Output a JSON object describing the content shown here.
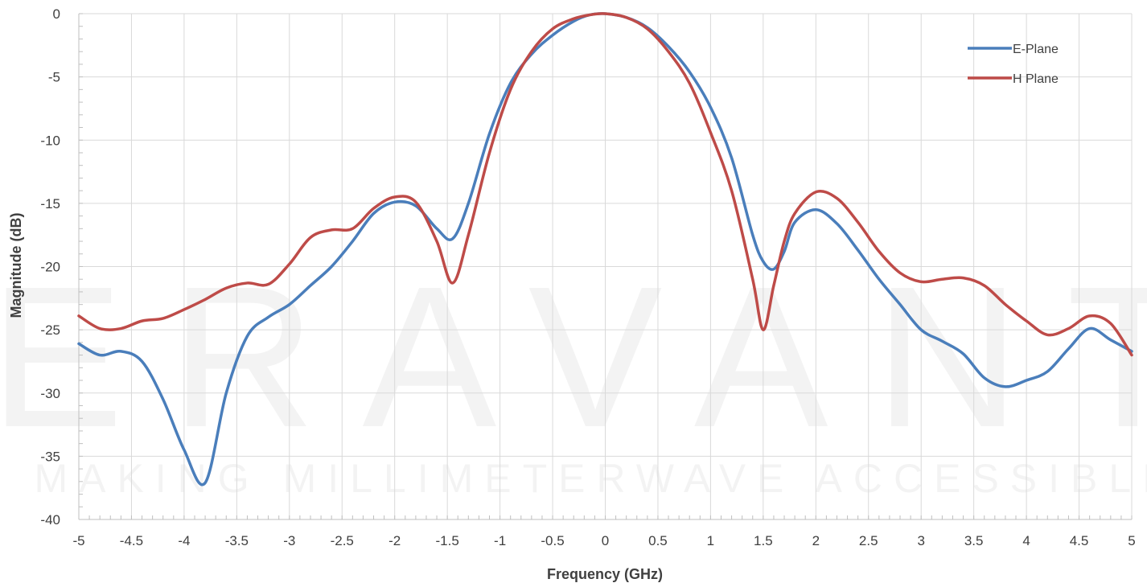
{
  "watermark": {
    "brand": "ERAVANT",
    "tagline": "MAKING MILLIMETERWAVE ACCESSIBLE"
  },
  "chart_data": {
    "type": "line",
    "title": "",
    "xlabel": "Frequency (GHz)",
    "ylabel": "Magnitude (dB)",
    "xlim": [
      -5,
      5
    ],
    "ylim": [
      -40,
      0
    ],
    "xticks": [
      -5,
      -4.5,
      -4,
      -3.5,
      -3,
      -2.5,
      -2,
      -1.5,
      -1,
      -0.5,
      0,
      0.5,
      1,
      1.5,
      2,
      2.5,
      3,
      3.5,
      4,
      4.5,
      5
    ],
    "xtick_labels": [
      "-5",
      "-4.5",
      "-4",
      "-3.5",
      "-3",
      "-2.5",
      "-2",
      "-1.5",
      "-1",
      "-0.5",
      "0",
      "0.5",
      "1",
      "1.5",
      "2",
      "2.5",
      "3",
      "3.5",
      "4",
      "4.5",
      "5"
    ],
    "yticks": [
      0,
      -5,
      -10,
      -15,
      -20,
      -25,
      -30,
      -35,
      -40
    ],
    "ytick_labels": [
      "0",
      "-5",
      "-10",
      "-15",
      "-20",
      "-25",
      "-30",
      "-35",
      "-40"
    ],
    "grid": true,
    "legend_position": "top-right",
    "series": [
      {
        "name": "E-Plane",
        "color": "#4a7ebb",
        "x": [
          -5,
          -4.8,
          -4.6,
          -4.4,
          -4.2,
          -4.0,
          -3.8,
          -3.6,
          -3.4,
          -3.2,
          -3.0,
          -2.8,
          -2.6,
          -2.4,
          -2.2,
          -2.0,
          -1.8,
          -1.6,
          -1.45,
          -1.3,
          -1.1,
          -0.9,
          -0.7,
          -0.5,
          -0.3,
          -0.15,
          0,
          0.2,
          0.4,
          0.6,
          0.8,
          1.0,
          1.2,
          1.4,
          1.5,
          1.6,
          1.7,
          1.8,
          2.0,
          2.2,
          2.4,
          2.6,
          2.8,
          3.0,
          3.2,
          3.4,
          3.6,
          3.8,
          4.0,
          4.2,
          4.4,
          4.6,
          4.8,
          5
        ],
        "y": [
          -26.1,
          -27.0,
          -26.7,
          -27.5,
          -30.5,
          -34.5,
          -37.1,
          -30.0,
          -25.5,
          -24.0,
          -23.0,
          -21.5,
          -20.0,
          -18.0,
          -15.8,
          -14.9,
          -15.2,
          -17.0,
          -17.8,
          -15.0,
          -9.5,
          -5.5,
          -3.2,
          -1.7,
          -0.6,
          -0.1,
          0.0,
          -0.3,
          -1.1,
          -2.6,
          -4.6,
          -7.4,
          -11.4,
          -17.5,
          -19.6,
          -20.2,
          -18.8,
          -16.5,
          -15.5,
          -16.6,
          -18.7,
          -21.0,
          -23.0,
          -25.0,
          -25.9,
          -26.9,
          -28.8,
          -29.5,
          -29.0,
          -28.3,
          -26.5,
          -24.9,
          -25.8,
          -26.7
        ]
      },
      {
        "name": "H Plane",
        "color": "#be4b48",
        "x": [
          -5,
          -4.8,
          -4.6,
          -4.4,
          -4.2,
          -4.0,
          -3.8,
          -3.6,
          -3.4,
          -3.2,
          -3.0,
          -2.8,
          -2.6,
          -2.4,
          -2.2,
          -2.0,
          -1.8,
          -1.6,
          -1.45,
          -1.3,
          -1.1,
          -0.9,
          -0.7,
          -0.5,
          -0.3,
          -0.15,
          0,
          0.2,
          0.4,
          0.6,
          0.8,
          1.0,
          1.2,
          1.4,
          1.5,
          1.6,
          1.7,
          1.8,
          2.0,
          2.2,
          2.4,
          2.6,
          2.8,
          3.0,
          3.2,
          3.4,
          3.6,
          3.8,
          4.0,
          4.2,
          4.4,
          4.6,
          4.8,
          5
        ],
        "y": [
          -23.9,
          -24.9,
          -24.9,
          -24.3,
          -24.1,
          -23.4,
          -22.6,
          -21.7,
          -21.3,
          -21.4,
          -19.8,
          -17.7,
          -17.1,
          -17.0,
          -15.4,
          -14.5,
          -14.9,
          -18.0,
          -21.3,
          -17.5,
          -11.0,
          -6.0,
          -3.0,
          -1.2,
          -0.4,
          -0.1,
          0.0,
          -0.3,
          -1.2,
          -3.0,
          -5.5,
          -9.4,
          -14.0,
          -21.0,
          -25.0,
          -21.5,
          -18.0,
          -15.8,
          -14.1,
          -14.6,
          -16.5,
          -18.8,
          -20.5,
          -21.2,
          -21.0,
          -20.9,
          -21.5,
          -23.0,
          -24.3,
          -25.4,
          -24.9,
          -23.9,
          -24.5,
          -27.0
        ]
      }
    ]
  }
}
